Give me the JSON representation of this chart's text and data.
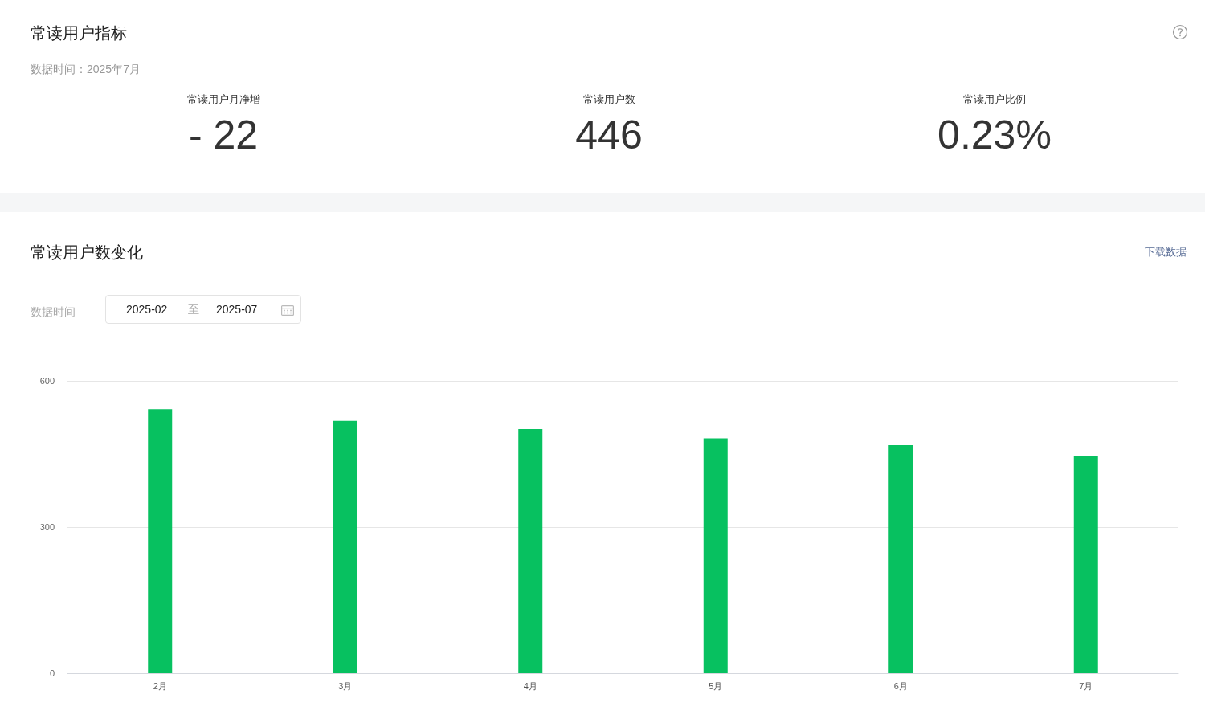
{
  "chart_data": [
    {
      "type": "other",
      "title": "常读用户指标",
      "subtitle": "数据时间：2025年7月",
      "annotations": [
        "常读用户月净增",
        "- 22",
        "常读用户数",
        "446",
        "常读用户比例",
        "0.23%"
      ]
    },
    {
      "type": "bar",
      "title": "常读用户数变化",
      "annotations": [
        "下载数据",
        "数据时间",
        "2025-02",
        "至",
        "2025-07"
      ],
      "categories": [
        "2月",
        "3月",
        "4月",
        "5月",
        "6月",
        "7月"
      ],
      "values": [
        542,
        518,
        501,
        482,
        468,
        446
      ],
      "color": "#07c160",
      "ylim": [
        0,
        600
      ],
      "yticks": [
        0,
        300,
        600
      ],
      "grid": "y"
    }
  ]
}
